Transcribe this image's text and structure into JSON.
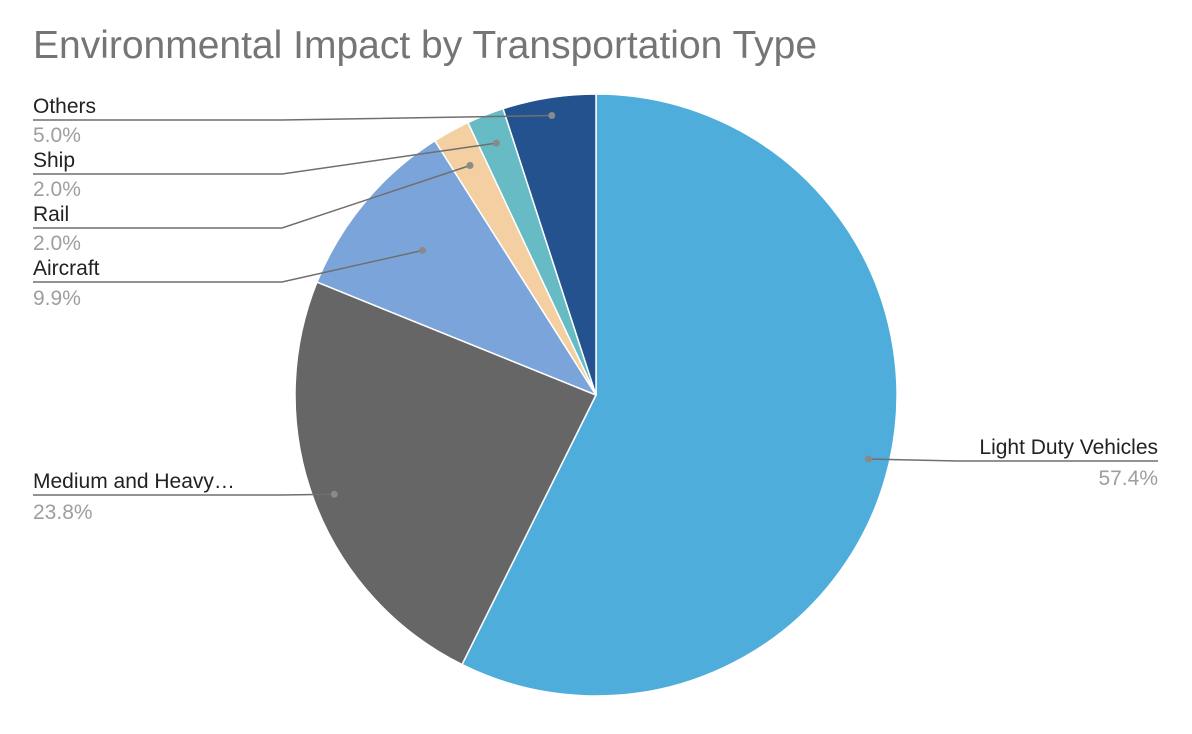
{
  "chart_data": {
    "type": "pie",
    "title": "Environmental Impact by Transportation Type",
    "slices": [
      {
        "label": "Light Duty Vehicles",
        "value": 57.4,
        "display": "57.4%",
        "color": "#4FADDB"
      },
      {
        "label": "Medium and Heavy…",
        "value": 23.8,
        "display": "23.8%",
        "color": "#666666"
      },
      {
        "label": "Aircraft",
        "value": 9.9,
        "display": "9.9%",
        "color": "#7BA5DA"
      },
      {
        "label": "Rail",
        "value": 2.0,
        "display": "2.0%",
        "color": "#F3CFA2"
      },
      {
        "label": "Ship",
        "value": 2.0,
        "display": "2.0%",
        "color": "#66BBC4"
      },
      {
        "label": "Others",
        "value": 5.0,
        "display": "5.0%",
        "color": "#23528F"
      }
    ],
    "start_angle_deg": 0,
    "direction": "clockwise",
    "legend": "none"
  }
}
